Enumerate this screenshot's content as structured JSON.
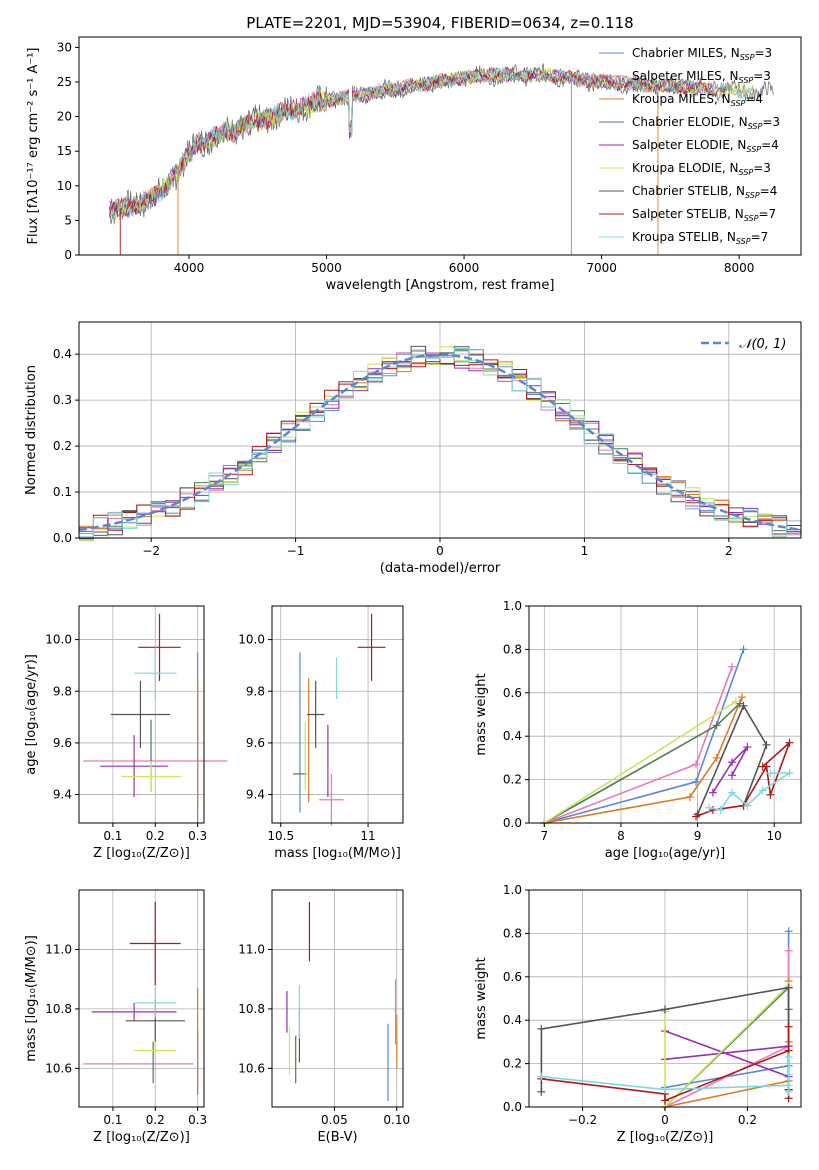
{
  "title": "PLATE=2201, MJD=53904, FIBERID=0634, z=0.118",
  "colors": {
    "Chabrier MILES": "#5b86d8",
    "Salpeter MILES": "#e87ab8",
    "Kroupa MILES": "#e07b22",
    "Chabrier ELODIE": "#4e7d52",
    "Salpeter ELODIE": "#9a2fb5",
    "Kroupa ELODIE": "#c9e65a",
    "Chabrier STELIB": "#555555",
    "Salpeter STELIB": "#b01818",
    "Kroupa STELIB": "#7fd8e0"
  },
  "chart_data": [
    {
      "id": "spectrum",
      "type": "line",
      "xlabel": "wavelength [Angstrom, rest frame]",
      "ylabel": "Flux [fλ10⁻¹⁷ erg cm⁻² s⁻¹ A⁻¹]",
      "xlim": [
        3200,
        8450
      ],
      "ylim": [
        0,
        31.5
      ],
      "xticks": [
        4000,
        5000,
        6000,
        7000,
        8000
      ],
      "yticks": [
        0,
        5,
        10,
        15,
        20,
        25,
        30
      ],
      "legend_position": "upper right",
      "continuum": [
        [
          3400,
          6.5
        ],
        [
          3600,
          7
        ],
        [
          3800,
          9
        ],
        [
          3950,
          13
        ],
        [
          4050,
          16
        ],
        [
          4300,
          18
        ],
        [
          4600,
          20
        ],
        [
          4900,
          22
        ],
        [
          5200,
          23
        ],
        [
          5500,
          24
        ],
        [
          5800,
          25
        ],
        [
          6200,
          26
        ],
        [
          6600,
          26
        ],
        [
          7000,
          25
        ],
        [
          7400,
          24.5
        ],
        [
          7800,
          24
        ],
        [
          8200,
          23.5
        ]
      ],
      "legend": [
        {
          "label": "Chabrier MILES, N",
          "sub": "SSP",
          "eq": "=3"
        },
        {
          "label": "Salpeter MILES, N",
          "sub": "SSP",
          "eq": "=3"
        },
        {
          "label": "Kroupa MILES, N",
          "sub": "SSP",
          "eq": "=4"
        },
        {
          "label": "Chabrier ELODIE, N",
          "sub": "SSP",
          "eq": "=3"
        },
        {
          "label": "Salpeter ELODIE, N",
          "sub": "SSP",
          "eq": "=4"
        },
        {
          "label": "Kroupa ELODIE, N",
          "sub": "SSP",
          "eq": "=3"
        },
        {
          "label": "Chabrier STELIB, N",
          "sub": "SSP",
          "eq": "=4"
        },
        {
          "label": "Salpeter STELIB, N",
          "sub": "SSP",
          "eq": "=7"
        },
        {
          "label": "Kroupa STELIB, N",
          "sub": "SSP",
          "eq": "=7"
        }
      ]
    },
    {
      "id": "residuals",
      "type": "line",
      "xlabel": "(data-model)/error",
      "ylabel": "Normed distribution",
      "xlim": [
        -2.5,
        2.5
      ],
      "ylim": [
        0,
        0.47
      ],
      "xticks": [
        -2,
        -1,
        0,
        1,
        2
      ],
      "yticks": [
        0.0,
        0.1,
        0.2,
        0.3,
        0.4
      ],
      "grid": true,
      "legend": [
        {
          "label": "𝒩(0, 1)"
        }
      ],
      "legend_position": "upper right"
    },
    {
      "id": "age_vs_Z",
      "type": "scatter",
      "xlabel": "Z [log₁₀(Z/Z⊙)]",
      "ylabel": "age  [log₁₀(age/yr)]",
      "xlim": [
        0.02,
        0.315
      ],
      "ylim": [
        9.29,
        10.13
      ],
      "xticks": [
        0.1,
        0.2,
        0.3
      ],
      "yticks": [
        9.4,
        9.6,
        9.8,
        10.0
      ],
      "grid": true,
      "points": [
        {
          "x": 0.3,
          "xerr": 0.0,
          "y": 9.62,
          "yerr": 0.33
        },
        {
          "x": 0.2,
          "xerr": 0.17,
          "y": 9.53,
          "yerr": 0.0
        },
        {
          "x": 0.3,
          "xerr": 0.0,
          "y": 9.6,
          "yerr": 0.25
        },
        {
          "x": 0.19,
          "xerr": 0.0,
          "y": 9.55,
          "yerr": 0.14
        },
        {
          "x": 0.15,
          "xerr": 0.08,
          "y": 9.51,
          "yerr": 0.12
        },
        {
          "x": 0.19,
          "xerr": 0.07,
          "y": 9.47,
          "yerr": 0.06
        },
        {
          "x": 0.165,
          "xerr": 0.07,
          "y": 9.71,
          "yerr": 0.13
        },
        {
          "x": 0.21,
          "xerr": 0.05,
          "y": 9.97,
          "yerr": 0.13
        },
        {
          "x": 0.2,
          "xerr": 0.05,
          "y": 9.87,
          "yerr": 0.1
        }
      ]
    },
    {
      "id": "age_vs_mass",
      "type": "scatter",
      "xlabel": "mass [log₁₀(M/M⊙)]",
      "xlim": [
        10.45,
        11.2
      ],
      "ylim": [
        9.29,
        10.13
      ],
      "xticks": [
        10.5,
        11.0
      ],
      "yticks": [
        9.4,
        9.6,
        9.8,
        10.0
      ],
      "grid": true,
      "points": [
        {
          "x": 10.61,
          "xerr": 0.0,
          "y": 9.64,
          "yerr": 0.31
        },
        {
          "x": 10.79,
          "xerr": 0.07,
          "y": 9.38,
          "yerr": 0.1
        },
        {
          "x": 10.66,
          "xerr": 0.0,
          "y": 9.61,
          "yerr": 0.24
        },
        {
          "x": 10.61,
          "xerr": 0.04,
          "y": 9.48,
          "yerr": 0.0
        },
        {
          "x": 10.77,
          "xerr": 0.0,
          "y": 9.53,
          "yerr": 0.14
        },
        {
          "x": 10.64,
          "xerr": 0.0,
          "y": 9.55,
          "yerr": 0.13
        },
        {
          "x": 10.7,
          "xerr": 0.05,
          "y": 9.71,
          "yerr": 0.13
        },
        {
          "x": 11.02,
          "xerr": 0.08,
          "y": 9.97,
          "yerr": 0.13
        },
        {
          "x": 10.82,
          "xerr": 0.0,
          "y": 9.85,
          "yerr": 0.08
        }
      ]
    },
    {
      "id": "massweight_vs_age",
      "type": "line",
      "xlabel": "age  [log₁₀(age/yr)]",
      "ylabel": "mass weight",
      "xlim": [
        6.8,
        10.35
      ],
      "ylim": [
        0,
        1.0
      ],
      "xticks": [
        7,
        8,
        9,
        10
      ],
      "yticks": [
        0.0,
        0.2,
        0.4,
        0.6,
        0.8,
        1.0
      ],
      "grid": true,
      "series": [
        {
          "x": [
            7.0,
            8.98,
            9.6
          ],
          "y": [
            0.0,
            0.19,
            0.8
          ]
        },
        {
          "x": [
            7.0,
            8.98,
            9.45
          ],
          "y": [
            0.0,
            0.27,
            0.72
          ]
        },
        {
          "x": [
            7.0,
            8.9,
            9.25,
            9.58
          ],
          "y": [
            0.0,
            0.12,
            0.3,
            0.58
          ]
        },
        {
          "x": [
            7.0,
            9.25,
            9.55
          ],
          "y": [
            0.0,
            0.45,
            0.55
          ]
        },
        {
          "x": [
            9.2,
            9.45,
            9.65,
            9.45
          ],
          "y": [
            0.14,
            0.28,
            0.35,
            0.22
          ]
        },
        {
          "x": [
            7.0,
            9.5
          ],
          "y": [
            0.0,
            0.56
          ]
        },
        {
          "x": [
            9.0,
            9.6,
            9.9,
            9.6
          ],
          "y": [
            0.04,
            0.54,
            0.36,
            0.08
          ]
        },
        {
          "x": [
            8.98,
            9.2,
            9.6,
            9.9,
            9.95,
            10.2,
            9.85
          ],
          "y": [
            0.03,
            0.06,
            0.08,
            0.26,
            0.13,
            0.37,
            0.26
          ]
        },
        {
          "x": [
            9.15,
            9.3,
            9.45,
            9.65,
            9.85,
            10.2,
            9.95
          ],
          "y": [
            0.07,
            0.06,
            0.14,
            0.08,
            0.15,
            0.23,
            0.23
          ]
        }
      ]
    },
    {
      "id": "mass_vs_Z",
      "type": "scatter",
      "xlabel": "Z [log₁₀(Z/Z⊙)]",
      "ylabel": "mass [log₁₀(M/M⊙)]",
      "xlim": [
        0.02,
        0.315
      ],
      "ylim": [
        10.47,
        11.2
      ],
      "xticks": [
        0.1,
        0.2,
        0.3
      ],
      "yticks": [
        10.6,
        10.8,
        11.0
      ],
      "grid": true,
      "points": [
        {
          "x": 0.3,
          "xerr": 0.0,
          "y": 10.62,
          "yerr": 0.11
        },
        {
          "x": 0.16,
          "xerr": 0.13,
          "y": 10.615,
          "yerr": 0.0
        },
        {
          "x": 0.3,
          "xerr": 0.0,
          "y": 10.7,
          "yerr": 0.17
        },
        {
          "x": 0.195,
          "xerr": 0.0,
          "y": 10.62,
          "yerr": 0.07
        },
        {
          "x": 0.15,
          "xerr": 0.1,
          "y": 10.79,
          "yerr": 0.03
        },
        {
          "x": 0.2,
          "xerr": 0.05,
          "y": 10.66,
          "yerr": 0.03
        },
        {
          "x": 0.2,
          "xerr": 0.07,
          "y": 10.76,
          "yerr": 0.07
        },
        {
          "x": 0.2,
          "xerr": 0.06,
          "y": 11.02,
          "yerr": 0.14
        },
        {
          "x": 0.2,
          "xerr": 0.05,
          "y": 10.82,
          "yerr": 0.05
        }
      ]
    },
    {
      "id": "mass_vs_EBV",
      "type": "scatter",
      "xlabel": "E(B-V)",
      "xlim": [
        0.0,
        0.105
      ],
      "ylim": [
        10.47,
        11.2
      ],
      "xticks": [
        0.05,
        0.1
      ],
      "yticks": [
        10.6,
        10.8,
        11.0
      ],
      "grid": true,
      "points": [
        {
          "x": 0.093,
          "y": 10.62,
          "yerr": 0.13
        },
        {
          "x": 0.099,
          "y": 10.79,
          "yerr": 0.11
        },
        {
          "x": 0.1,
          "y": 10.69,
          "yerr": 0.09
        },
        {
          "x": 0.019,
          "y": 10.63,
          "yerr": 0.08
        },
        {
          "x": 0.012,
          "y": 10.79,
          "yerr": 0.07
        },
        {
          "x": 0.014,
          "y": 10.66,
          "yerr": 0.08
        },
        {
          "x": 0.022,
          "y": 10.71,
          "yerr": 0.09
        },
        {
          "x": 0.03,
          "y": 11.06,
          "yerr": 0.1
        },
        {
          "x": 0.022,
          "y": 10.79,
          "yerr": 0.09
        }
      ]
    },
    {
      "id": "massweight_vs_Z",
      "type": "line",
      "xlabel": "Z [log₁₀(Z/Z⊙)]",
      "ylabel": "mass weight",
      "xlim": [
        -0.33,
        0.33
      ],
      "ylim": [
        0,
        1.0
      ],
      "xticks": [
        -0.2,
        0.0,
        0.2
      ],
      "yticks": [
        0.0,
        0.2,
        0.4,
        0.6,
        0.8,
        1.0
      ],
      "grid": true,
      "series": [
        {
          "x": [
            0.0,
            0.3,
            0.3
          ],
          "y": [
            0.09,
            0.19,
            0.81
          ]
        },
        {
          "x": [
            0.0,
            0.3,
            0.3
          ],
          "y": [
            0.0,
            0.28,
            0.72
          ]
        },
        {
          "x": [
            0.0,
            0.3,
            0.3,
            0.3
          ],
          "y": [
            0.0,
            0.12,
            0.3,
            0.58
          ]
        },
        {
          "x": [
            0.0,
            0.3,
            0.3
          ],
          "y": [
            0.0,
            0.55,
            0.45
          ]
        },
        {
          "x": [
            0.0,
            0.3,
            0.3,
            0.0
          ],
          "y": [
            0.35,
            0.14,
            0.28,
            0.22
          ]
        },
        {
          "x": [
            0.0,
            0.0,
            0.3
          ],
          "y": [
            0.44,
            0.0,
            0.56
          ]
        },
        {
          "x": [
            -0.3,
            -0.3,
            0.0,
            0.3,
            0.3
          ],
          "y": [
            0.07,
            0.36,
            0.45,
            0.55,
            0.08
          ]
        },
        {
          "x": [
            -0.3,
            0.0,
            0.0,
            0.3,
            0.3,
            0.3,
            0.3
          ],
          "y": [
            0.13,
            0.06,
            0.03,
            0.26,
            0.37,
            0.08,
            0.04
          ]
        },
        {
          "x": [
            -0.3,
            0.0,
            0.3,
            0.3,
            0.3,
            0.3
          ],
          "y": [
            0.14,
            0.08,
            0.1,
            0.23,
            0.15,
            0.07
          ]
        }
      ]
    }
  ]
}
